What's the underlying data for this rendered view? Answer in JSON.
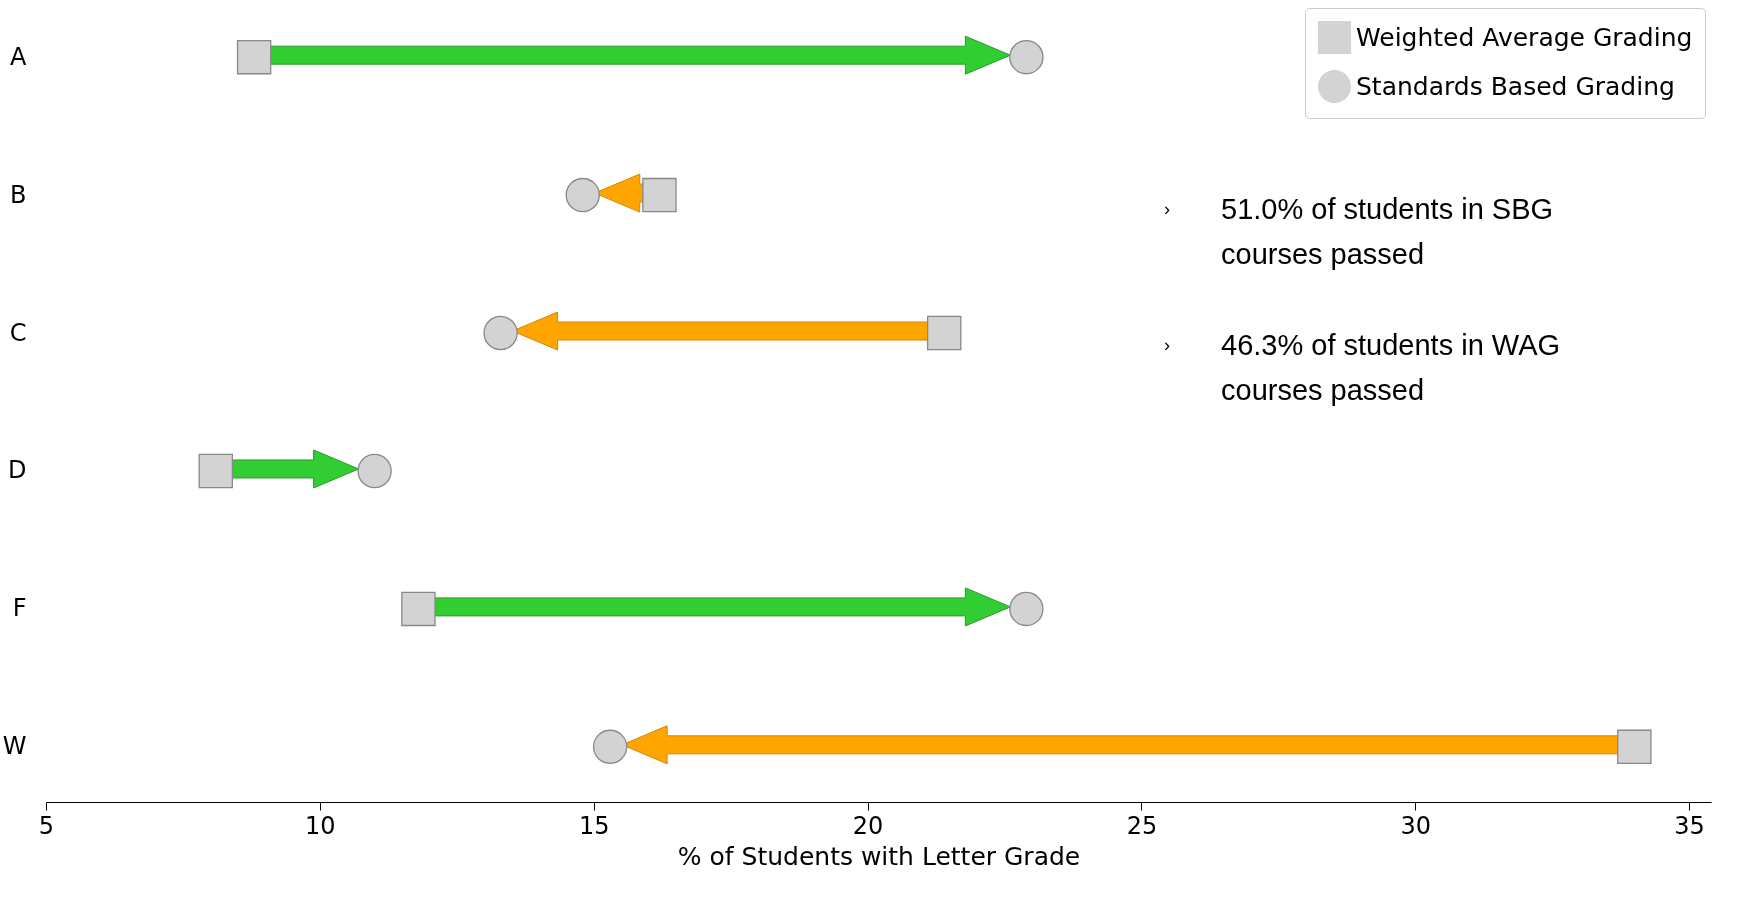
{
  "chart_data": {
    "type": "scatter",
    "orientation": "horizontal",
    "xlabel": "% of Students with Letter Grade",
    "categories": [
      "A",
      "B",
      "C",
      "D",
      "F",
      "W"
    ],
    "xlim": [
      5,
      35.4
    ],
    "xticks": [
      5,
      10,
      15,
      20,
      25,
      30,
      35
    ],
    "legend": "top right",
    "grid": false,
    "series": [
      {
        "name": "Weighted Average Grading",
        "marker": "square",
        "color": "#d3d3d3",
        "values": [
          8.8,
          16.2,
          21.4,
          8.1,
          11.8,
          34.0
        ]
      },
      {
        "name": "Standards Based Grading",
        "marker": "circle",
        "color": "#d3d3d3",
        "values": [
          22.9,
          14.8,
          13.3,
          11.0,
          22.9,
          15.3
        ]
      }
    ],
    "annotations": [
      "› 51.0% of students in SBG courses passed",
      "› 46.3% of students in WAG courses passed"
    ]
  }
}
